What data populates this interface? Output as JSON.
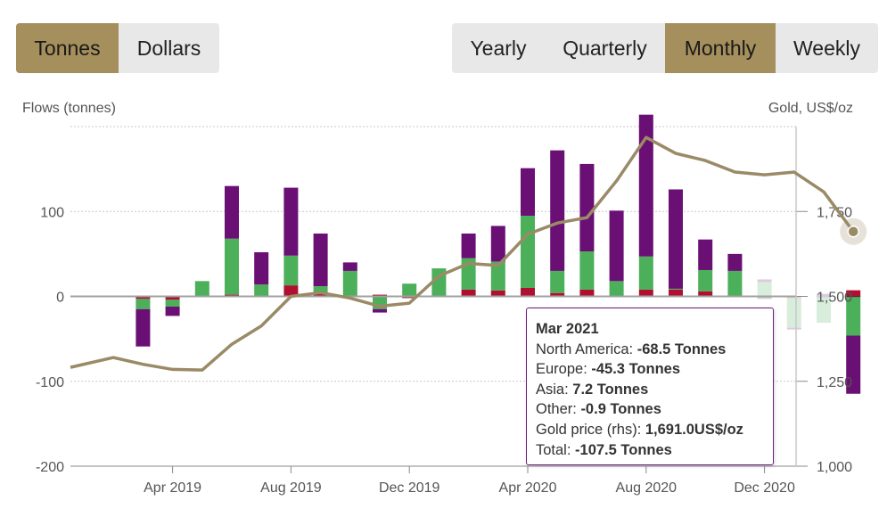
{
  "units_toggle": {
    "tonnes": "Tonnes",
    "dollars": "Dollars",
    "active": "tonnes"
  },
  "period_toggle": {
    "yearly": "Yearly",
    "quarterly": "Quarterly",
    "monthly": "Monthly",
    "weekly": "Weekly",
    "active": "monthly"
  },
  "colors": {
    "north_america": "#6a0f74",
    "europe": "#4caf5a",
    "asia": "#b0102f",
    "other": "#1d2b4a",
    "gold_line": "#9a8a66",
    "button_active": "#a58f5c"
  },
  "chart_data": {
    "type": "bar",
    "stacked": true,
    "ylabel_left": "Flows (tonnes)",
    "ylabel_right": "Gold, US$/oz",
    "ylim_left": [
      -200,
      200
    ],
    "ylim_right": [
      1000,
      2000
    ],
    "yticks_left": [
      "100",
      "0",
      "-100",
      "-200"
    ],
    "yticks_right": [
      "1,750",
      "1,500",
      "1,250",
      "1,000"
    ],
    "x_tick_labels": [
      "Apr 2019",
      "Aug 2019",
      "Dec 2019",
      "Apr 2020",
      "Aug 2020",
      "Dec 2020"
    ],
    "categories": [
      "Jan 2019",
      "Feb 2019",
      "Mar 2019",
      "Apr 2019",
      "May 2019",
      "Jun 2019",
      "Jul 2019",
      "Aug 2019",
      "Sep 2019",
      "Oct 2019",
      "Nov 2019",
      "Dec 2019",
      "Jan 2020",
      "Feb 2020",
      "Mar 2020",
      "Apr 2020",
      "May 2020",
      "Jun 2020",
      "Jul 2020",
      "Aug 2020",
      "Sep 2020",
      "Oct 2020",
      "Nov 2020",
      "Dec 2020",
      "Jan 2021",
      "Feb 2021",
      "Mar 2021"
    ],
    "series": [
      {
        "name": "North America",
        "values": [
          0,
          0,
          -44,
          -11,
          0,
          62,
          38,
          80,
          62,
          10,
          -4,
          0,
          0,
          29,
          42,
          56,
          142,
          103,
          83,
          167,
          117,
          36,
          20,
          3,
          -2,
          3,
          -68.5
        ]
      },
      {
        "name": "Europe",
        "values": [
          0,
          0,
          -12,
          -8,
          18,
          66,
          13,
          35,
          8,
          29,
          -14,
          15,
          33,
          37,
          34,
          85,
          26,
          45,
          17,
          39,
          1,
          25,
          30,
          17,
          -35,
          -30,
          -45.3
        ]
      },
      {
        "name": "Asia",
        "values": [
          0,
          0,
          -2,
          -3,
          0,
          2,
          1,
          13,
          4,
          1,
          2,
          -2,
          0,
          7,
          7,
          9,
          4,
          7,
          1,
          7,
          8,
          6,
          -1,
          0,
          -2,
          0,
          7.2
        ]
      },
      {
        "name": "Other",
        "values": [
          0,
          0,
          -1,
          -1,
          0,
          0,
          0,
          0,
          0,
          0,
          -1,
          0,
          0,
          1,
          0,
          1,
          0,
          1,
          0,
          1,
          0,
          0,
          0,
          -3,
          0,
          -1,
          -0.9
        ]
      }
    ],
    "gold_price": [
      1291,
      1320,
      1300,
      1285,
      1283,
      1359,
      1413,
      1500,
      1511,
      1495,
      1471,
      1480,
      1560,
      1597,
      1591,
      1683,
      1716,
      1732,
      1840,
      1968,
      1921,
      1900,
      1866,
      1858,
      1866,
      1808,
      1691
    ],
    "highlighted": "Mar 2021",
    "grid": true,
    "legend": "none"
  },
  "tooltip": {
    "title": "Mar 2021",
    "north_america_label": "North America: ",
    "north_america_value": "-68.5 Tonnes",
    "europe_label": "Europe: ",
    "europe_value": "-45.3 Tonnes",
    "asia_label": "Asia: ",
    "asia_value": "7.2 Tonnes",
    "other_label": "Other: ",
    "other_value": "-0.9 Tonnes",
    "gold_label": "Gold price (rhs): ",
    "gold_value": "1,691.0US$/oz",
    "total_label": "Total: ",
    "total_value": "-107.5 Tonnes"
  }
}
